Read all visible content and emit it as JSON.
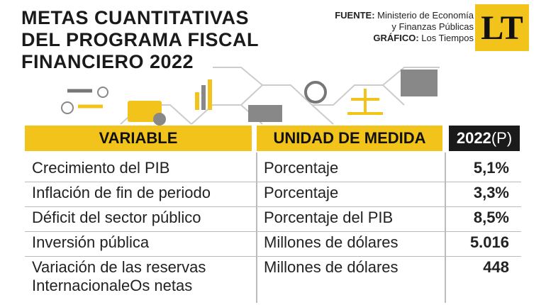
{
  "header": {
    "title": [
      "METAS CUANTITATIVAS",
      "DEL PROGRAMA FISCAL",
      "FINANCIERO 2022"
    ],
    "source_label": "FUENTE:",
    "source": [
      "Ministerio de Economía",
      "y Finanzas Públicas"
    ],
    "credit_label": "GRÁFICO:",
    "credit": "Los Tiempos",
    "logo": "LT"
  },
  "table": {
    "columns": [
      "VARIABLE",
      "UNIDAD DE MEDIDA"
    ],
    "year": "2022",
    "year_note": "(P)",
    "rows": [
      [
        "Crecimiento del PIB",
        "Porcentaje",
        "5,1%"
      ],
      [
        "Inflación de fin de periodo",
        "Porcentaje",
        "3,3%"
      ],
      [
        "Déficit del sector público",
        "Porcentaje del PIB",
        "8,5%"
      ],
      [
        "Inversión pública",
        "Millones de dólares",
        "5.016"
      ],
      [
        "Variación de las reservas\nInternacionaleOs netas",
        "Millones de dólares",
        "448"
      ]
    ]
  }
}
